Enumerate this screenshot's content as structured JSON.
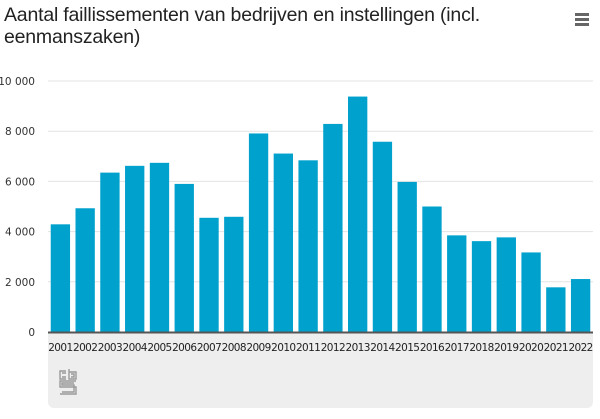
{
  "header": {
    "title": "Aantal faillissementen van bedrijven en instellingen (incl. eenmanszaken)",
    "menu_icon": "hamburger-menu-icon"
  },
  "footer": {
    "logo_text": "cbs"
  },
  "colors": {
    "bar": "#00a1cd",
    "grid": "#e3e3e3",
    "axis": "#555555",
    "footer_bg": "#eeeeee"
  },
  "chart_data": {
    "type": "bar",
    "title": "Aantal faillissementen van bedrijven en instellingen (incl. eenmanszaken)",
    "xlabel": "",
    "ylabel": "",
    "ylim": [
      0,
      10000
    ],
    "grid": true,
    "legend": "none",
    "yticks": [
      0,
      2000,
      4000,
      6000,
      8000,
      10000
    ],
    "ytick_labels": [
      "0",
      "2 000",
      "4 000",
      "6 000",
      "8 000",
      "10 000"
    ],
    "categories": [
      "2001",
      "2002",
      "2003",
      "2004",
      "2005",
      "2006",
      "2007",
      "2008",
      "2009",
      "2010",
      "2011",
      "2012",
      "2013",
      "2014",
      "2015",
      "2016",
      "2017",
      "2018",
      "2019",
      "2020",
      "2021",
      "2022"
    ],
    "values": [
      4290,
      4930,
      6350,
      6620,
      6740,
      5900,
      4550,
      4590,
      7910,
      7110,
      6840,
      8290,
      9380,
      7580,
      5980,
      5000,
      3850,
      3620,
      3770,
      3170,
      1780,
      2110
    ]
  }
}
